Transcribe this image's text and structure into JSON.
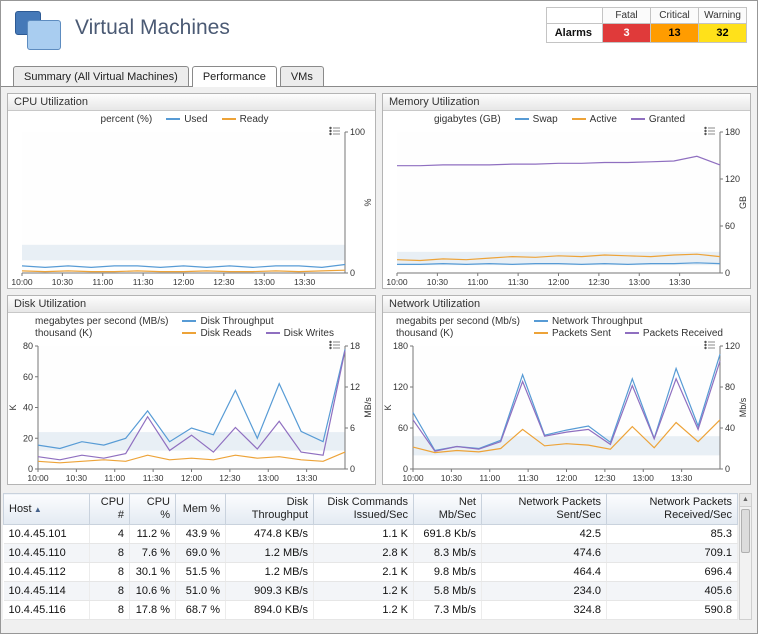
{
  "header": {
    "title": "Virtual Machines",
    "alarms": {
      "label": "Alarms",
      "columns": [
        "Fatal",
        "Critical",
        "Warning"
      ],
      "values": [
        "3",
        "13",
        "32"
      ],
      "colors": [
        "#e03a3a",
        "#ff9c00",
        "#ffe11a"
      ],
      "text_colors": [
        "#ffffff",
        "#000000",
        "#000000"
      ]
    }
  },
  "tabs": [
    {
      "label": "Summary (All Virtual Machines)",
      "active": false
    },
    {
      "label": "Performance",
      "active": true
    },
    {
      "label": "VMs",
      "active": false
    }
  ],
  "charts": [
    {
      "title": "CPU Utilization",
      "x_ticks": [
        "10:00",
        "10:30",
        "11:00",
        "11:30",
        "12:00",
        "12:30",
        "13:00",
        "13:30"
      ],
      "right_axis": {
        "label": "%",
        "min": 0,
        "max": 100,
        "ticks": [
          0,
          100
        ]
      },
      "band": {
        "axis": "right",
        "from": 9,
        "to": 20
      },
      "legend_rows": [
        {
          "unit": "percent (%)",
          "series": [
            0,
            1
          ]
        }
      ],
      "series": [
        {
          "name": "Used",
          "color": "#579bd5",
          "axis": "right",
          "values": [
            5,
            4,
            5,
            4,
            5,
            5,
            4,
            5,
            4,
            5,
            4,
            5,
            5,
            4,
            6
          ]
        },
        {
          "name": "Ready",
          "color": "#eda338",
          "axis": "right",
          "values": [
            1.5,
            1,
            1.5,
            1,
            1,
            1.5,
            1,
            1,
            1.5,
            1,
            1,
            1.5,
            1,
            1.5,
            2
          ]
        }
      ]
    },
    {
      "title": "Memory Utilization",
      "x_ticks": [
        "10:00",
        "10:30",
        "11:00",
        "11:30",
        "12:00",
        "12:30",
        "13:00",
        "13:30"
      ],
      "right_axis": {
        "label": "GB",
        "min": 0,
        "max": 180,
        "ticks": [
          0,
          60,
          120,
          180
        ]
      },
      "band": {
        "axis": "right",
        "from": 10,
        "to": 27
      },
      "legend_rows": [
        {
          "unit": "gigabytes (GB)",
          "series": [
            0,
            1,
            2
          ]
        }
      ],
      "series": [
        {
          "name": "Swap",
          "color": "#579bd5",
          "axis": "right",
          "values": [
            11,
            11,
            12,
            11,
            12,
            11,
            12,
            12,
            11,
            12,
            11,
            12,
            12,
            13,
            12
          ]
        },
        {
          "name": "Active",
          "color": "#eda338",
          "axis": "right",
          "values": [
            17,
            16,
            18,
            17,
            19,
            21,
            20,
            22,
            21,
            23,
            22,
            21,
            23,
            24,
            21
          ]
        },
        {
          "name": "Granted",
          "color": "#8f6fc0",
          "axis": "right",
          "values": [
            137,
            137,
            138,
            138,
            138,
            139,
            139,
            140,
            140,
            141,
            141,
            142,
            143,
            149,
            138
          ]
        }
      ]
    },
    {
      "title": "Disk Utilization",
      "x_ticks": [
        "10:00",
        "10:30",
        "11:00",
        "11:30",
        "12:00",
        "12:30",
        "13:00",
        "13:30"
      ],
      "left_axis": {
        "label": "K",
        "min": 0,
        "max": 80,
        "ticks": [
          0,
          20,
          40,
          60,
          80
        ]
      },
      "right_axis": {
        "label": "MB/s",
        "min": 0,
        "max": 18,
        "ticks": [
          0,
          6,
          12,
          18
        ]
      },
      "band": {
        "axis": "left",
        "from": 12,
        "to": 24
      },
      "legend_rows": [
        {
          "unit": "megabytes per second (MB/s)",
          "series": [
            0
          ]
        },
        {
          "unit": "thousand (K)",
          "series": [
            1,
            2
          ]
        }
      ],
      "series": [
        {
          "name": "Disk Throughput",
          "color": "#579bd5",
          "axis": "right",
          "values": [
            3.5,
            3,
            4,
            3.5,
            4.5,
            8.5,
            4,
            6,
            5,
            11.5,
            4.5,
            12.5,
            5.5,
            4,
            17.5
          ]
        },
        {
          "name": "Disk Reads",
          "color": "#eda338",
          "axis": "left",
          "values": [
            5,
            4,
            5,
            6,
            5,
            9,
            6,
            7,
            6,
            9,
            7,
            8,
            6,
            5,
            11
          ]
        },
        {
          "name": "Disk Writes",
          "color": "#8f6fc0",
          "axis": "left",
          "values": [
            8,
            6,
            9,
            7,
            10,
            34,
            12,
            22,
            11,
            27,
            13,
            31,
            11,
            9,
            77
          ]
        }
      ]
    },
    {
      "title": "Network Utilization",
      "x_ticks": [
        "10:00",
        "10:30",
        "11:00",
        "11:30",
        "12:00",
        "12:30",
        "13:00",
        "13:30"
      ],
      "left_axis": {
        "label": "K",
        "min": 0,
        "max": 180,
        "ticks": [
          0,
          60,
          120,
          180
        ]
      },
      "right_axis": {
        "label": "Mb/s",
        "min": 0,
        "max": 120,
        "ticks": [
          0,
          40,
          80,
          120
        ]
      },
      "band": {
        "axis": "left",
        "from": 20,
        "to": 48
      },
      "legend_rows": [
        {
          "unit": "megabits per second (Mb/s)",
          "series": [
            0
          ]
        },
        {
          "unit": "thousand (K)",
          "series": [
            1,
            2
          ]
        }
      ],
      "series": [
        {
          "name": "Network Throughput",
          "color": "#579bd5",
          "axis": "right",
          "values": [
            55,
            18,
            22,
            20,
            28,
            92,
            33,
            38,
            42,
            26,
            88,
            30,
            98,
            42,
            112
          ]
        },
        {
          "name": "Packets Sent",
          "color": "#eda338",
          "axis": "left",
          "values": [
            32,
            24,
            27,
            25,
            30,
            58,
            34,
            37,
            35,
            29,
            62,
            31,
            68,
            40,
            72
          ]
        },
        {
          "name": "Packets Received",
          "color": "#8f6fc0",
          "axis": "left",
          "values": [
            72,
            26,
            33,
            29,
            40,
            128,
            48,
            54,
            58,
            36,
            122,
            44,
            132,
            58,
            158
          ]
        }
      ]
    }
  ],
  "table": {
    "columns": [
      {
        "label": "Host",
        "sorted": "asc",
        "align": "left"
      },
      {
        "label": "CPU #",
        "align": "right"
      },
      {
        "label": "CPU %",
        "align": "right"
      },
      {
        "label": "Mem %",
        "align": "right"
      },
      {
        "label": "Disk Throughput",
        "align": "right"
      },
      {
        "label": "Disk Commands Issued/Sec",
        "align": "right"
      },
      {
        "label": "Net Mb/Sec",
        "align": "right"
      },
      {
        "label": "Network Packets Sent/Sec",
        "align": "right"
      },
      {
        "label": "Network Packets Received/Sec",
        "align": "right"
      }
    ],
    "rows": [
      [
        "10.4.45.101",
        "4",
        "11.2 %",
        "43.9 %",
        "474.8 KB/s",
        "1.1 K",
        "691.8 Kb/s",
        "42.5",
        "85.3"
      ],
      [
        "10.4.45.110",
        "8",
        "7.6 %",
        "69.0 %",
        "1.2 MB/s",
        "2.8 K",
        "8.3 Mb/s",
        "474.6",
        "709.1"
      ],
      [
        "10.4.45.112",
        "8",
        "30.1 %",
        "51.5 %",
        "1.2 MB/s",
        "2.1 K",
        "9.8 Mb/s",
        "464.4",
        "696.4"
      ],
      [
        "10.4.45.114",
        "8",
        "10.6 %",
        "51.0 %",
        "909.3 KB/s",
        "1.2 K",
        "5.8 Mb/s",
        "234.0",
        "405.6"
      ],
      [
        "10.4.45.116",
        "8",
        "17.8 %",
        "68.7 %",
        "894.0 KB/s",
        "1.2 K",
        "7.3 Mb/s",
        "324.8",
        "590.8"
      ]
    ]
  }
}
